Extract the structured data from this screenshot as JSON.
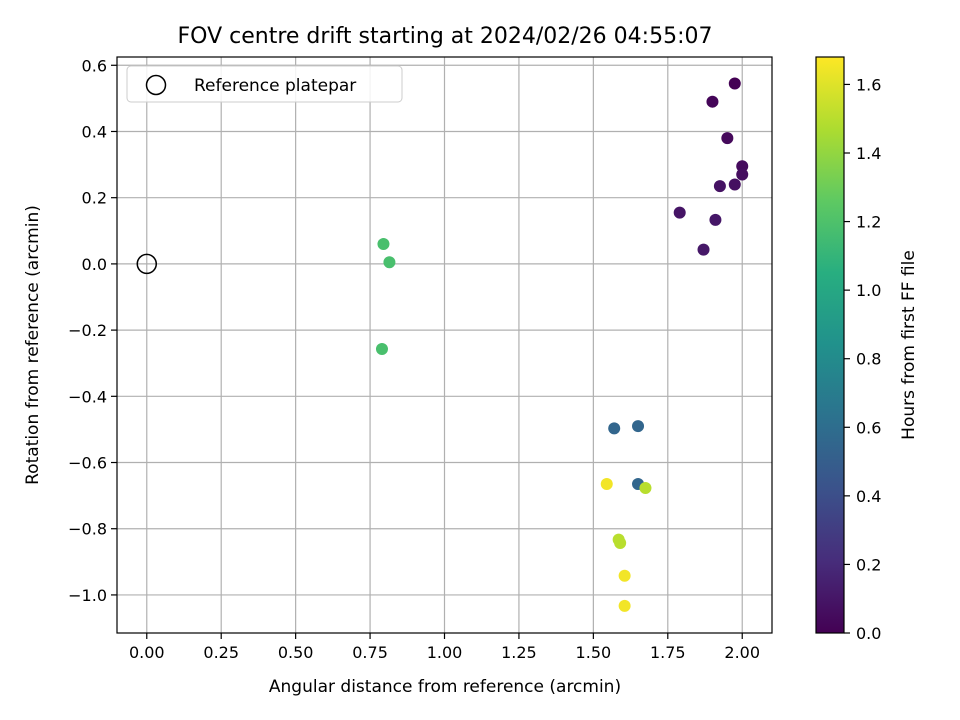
{
  "chart_data": {
    "type": "scatter",
    "title": "FOV centre drift starting at 2024/02/26 04:55:07",
    "xlabel": "Angular distance from reference (arcmin)",
    "ylabel": "Rotation from reference (arcmin)",
    "xlim": [
      -0.1,
      2.1
    ],
    "ylim": [
      -1.115,
      0.625
    ],
    "x_ticks": [
      0.0,
      0.25,
      0.5,
      0.75,
      1.0,
      1.25,
      1.5,
      1.75,
      2.0
    ],
    "x_tick_labels": [
      "0.00",
      "0.25",
      "0.50",
      "0.75",
      "1.00",
      "1.25",
      "1.50",
      "1.75",
      "2.00"
    ],
    "y_ticks": [
      -1.0,
      -0.8,
      -0.6,
      -0.4,
      -0.2,
      0.0,
      0.2,
      0.4,
      0.6
    ],
    "y_tick_labels": [
      "−1.0",
      "−0.8",
      "−0.6",
      "−0.4",
      "−0.2",
      "0.0",
      "0.2",
      "0.4",
      "0.6"
    ],
    "grid": true,
    "legend": {
      "placement": "top-left",
      "entries": [
        "Reference platepar"
      ]
    },
    "reference_point": {
      "x": 0.0,
      "y": 0.0
    },
    "colorbar": {
      "label": "Hours from first FF file",
      "colormap": "viridis",
      "range": [
        0.0,
        1.68
      ],
      "ticks": [
        0.0,
        0.2,
        0.4,
        0.6,
        0.8,
        1.0,
        1.2,
        1.4,
        1.6
      ],
      "tick_labels": [
        "0.0",
        "0.2",
        "0.4",
        "0.6",
        "0.8",
        "1.0",
        "1.2",
        "1.4",
        "1.6"
      ]
    },
    "points": [
      {
        "x": 1.975,
        "y": 0.545,
        "hours": 0.0
      },
      {
        "x": 1.9,
        "y": 0.49,
        "hours": 0.02
      },
      {
        "x": 1.95,
        "y": 0.38,
        "hours": 0.04
      },
      {
        "x": 2.0,
        "y": 0.295,
        "hours": 0.05
      },
      {
        "x": 2.0,
        "y": 0.27,
        "hours": 0.06
      },
      {
        "x": 1.975,
        "y": 0.24,
        "hours": 0.07
      },
      {
        "x": 1.925,
        "y": 0.235,
        "hours": 0.08
      },
      {
        "x": 1.79,
        "y": 0.155,
        "hours": 0.09
      },
      {
        "x": 1.91,
        "y": 0.133,
        "hours": 0.1
      },
      {
        "x": 1.87,
        "y": 0.043,
        "hours": 0.11
      },
      {
        "x": 1.57,
        "y": -0.497,
        "hours": 0.55
      },
      {
        "x": 1.65,
        "y": -0.49,
        "hours": 0.55
      },
      {
        "x": 1.65,
        "y": -0.665,
        "hours": 0.55
      },
      {
        "x": 0.795,
        "y": 0.06,
        "hours": 1.18
      },
      {
        "x": 0.815,
        "y": 0.005,
        "hours": 1.18
      },
      {
        "x": 0.79,
        "y": -0.257,
        "hours": 1.18
      },
      {
        "x": 1.675,
        "y": -0.677,
        "hours": 1.5
      },
      {
        "x": 1.585,
        "y": -0.833,
        "hours": 1.5
      },
      {
        "x": 1.59,
        "y": -0.843,
        "hours": 1.5
      },
      {
        "x": 1.545,
        "y": -0.665,
        "hours": 1.65
      },
      {
        "x": 1.605,
        "y": -0.942,
        "hours": 1.65
      },
      {
        "x": 1.605,
        "y": -1.033,
        "hours": 1.65
      }
    ]
  }
}
